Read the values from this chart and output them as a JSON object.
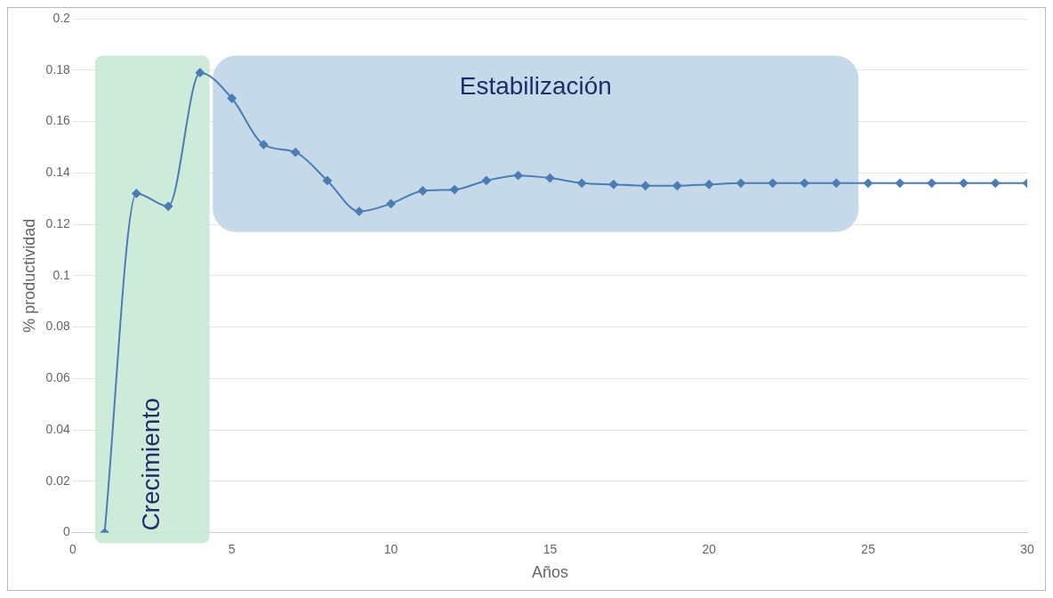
{
  "chart_data": {
    "type": "line",
    "xlabel": "Años",
    "ylabel": "% productividad",
    "x": [
      1,
      2,
      3,
      4,
      5,
      6,
      7,
      8,
      9,
      10,
      11,
      12,
      13,
      14,
      15,
      16,
      17,
      18,
      19,
      20,
      21,
      22,
      23,
      24,
      25,
      26,
      27,
      28,
      29,
      30
    ],
    "series": [
      {
        "color": "#4a7db5",
        "values": [
          0,
          0.132,
          0.127,
          0.179,
          0.169,
          0.151,
          0.148,
          0.137,
          0.125,
          0.128,
          0.133,
          0.1335,
          0.137,
          0.139,
          0.138,
          0.136,
          0.1355,
          0.135,
          0.135,
          0.1355,
          0.136,
          0.136,
          0.136,
          0.136,
          0.136,
          0.136,
          0.136,
          0.136,
          0.136,
          0.136
        ]
      }
    ],
    "xlim": [
      0,
      30
    ],
    "xticks": [
      0,
      5,
      10,
      15,
      20,
      25,
      30
    ],
    "ylim": [
      0,
      0.2
    ],
    "yticks": [
      0,
      0.02,
      0.04,
      0.06,
      0.08,
      0.1,
      0.12,
      0.14,
      0.16,
      0.18,
      0.2
    ],
    "grid": "y",
    "legend": false,
    "marker": "diamond",
    "line_style": "solid",
    "bands": [
      {
        "axis": "x",
        "from": 0.7,
        "to": 4.3,
        "label": "Crecimiento",
        "color": "#c5e6d2"
      },
      {
        "axis": "x",
        "from": 4.4,
        "to": 24.7,
        "label": "Estabilización",
        "color": "#bcd2e4"
      }
    ]
  }
}
